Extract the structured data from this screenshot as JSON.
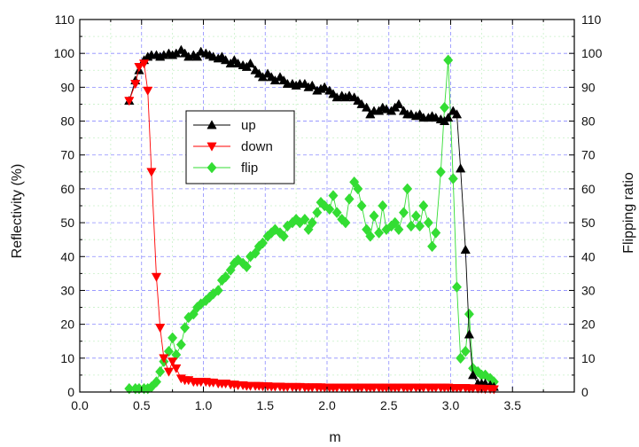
{
  "chart_data": {
    "type": "line",
    "xlabel": "m",
    "ylabel": "Reflectivity (%)",
    "y2label": "Flipping ratio",
    "xlim": [
      0.0,
      4.0
    ],
    "ylim": [
      0,
      110
    ],
    "y2lim": [
      0,
      110
    ],
    "xticks": [
      "0.0",
      "0.5",
      "1.0",
      "1.5",
      "2.0",
      "2.5",
      "3.0",
      "3.5"
    ],
    "yticks": [
      "0",
      "10",
      "20",
      "30",
      "40",
      "50",
      "60",
      "70",
      "80",
      "90",
      "100",
      "110"
    ],
    "y2ticks": [
      "0",
      "10",
      "20",
      "30",
      "40",
      "50",
      "60",
      "70",
      "80",
      "90",
      "100",
      "110"
    ],
    "grid": true,
    "legend_position": "upper-left-center",
    "series": [
      {
        "name": "up",
        "axis": "left",
        "color": "#000000",
        "marker": "triangle-up",
        "x": [
          0.4,
          0.45,
          0.48,
          0.52,
          0.55,
          0.58,
          0.62,
          0.65,
          0.68,
          0.72,
          0.75,
          0.78,
          0.82,
          0.85,
          0.88,
          0.92,
          0.95,
          0.98,
          1.02,
          1.05,
          1.08,
          1.12,
          1.15,
          1.18,
          1.22,
          1.25,
          1.28,
          1.32,
          1.35,
          1.38,
          1.42,
          1.45,
          1.48,
          1.52,
          1.55,
          1.58,
          1.62,
          1.65,
          1.68,
          1.72,
          1.75,
          1.78,
          1.82,
          1.85,
          1.88,
          1.92,
          1.95,
          1.98,
          2.02,
          2.05,
          2.08,
          2.12,
          2.15,
          2.18,
          2.22,
          2.25,
          2.28,
          2.32,
          2.35,
          2.38,
          2.42,
          2.45,
          2.48,
          2.52,
          2.55,
          2.58,
          2.62,
          2.65,
          2.68,
          2.72,
          2.75,
          2.78,
          2.82,
          2.85,
          2.88,
          2.92,
          2.95,
          2.98,
          3.02,
          3.05,
          3.08,
          3.12,
          3.15,
          3.18,
          3.22,
          3.25,
          3.28,
          3.32,
          3.35
        ],
        "y": [
          86,
          92,
          95,
          98,
          99,
          99.5,
          99.5,
          99,
          99.5,
          100,
          99.5,
          100,
          101,
          100,
          99,
          99.5,
          99,
          100.5,
          100,
          99.5,
          99,
          98.5,
          99,
          98,
          97,
          98,
          97,
          96.5,
          96,
          97,
          95,
          94,
          93,
          94,
          93,
          92,
          93,
          92,
          91,
          91,
          90.5,
          91,
          91,
          90,
          90.5,
          89,
          89.5,
          90,
          89,
          88,
          87,
          87.5,
          87,
          87.5,
          87,
          86,
          85,
          84,
          82,
          83,
          83,
          84,
          83.5,
          83,
          84,
          85,
          83,
          82,
          82,
          81.5,
          82,
          81,
          81,
          81.5,
          81,
          80.5,
          80,
          81,
          83,
          82,
          66,
          42,
          17,
          5,
          2.5,
          2.5,
          2.5,
          2,
          1.5
        ]
      },
      {
        "name": "down",
        "axis": "left",
        "color": "#ff0000",
        "marker": "triangle-down",
        "x": [
          0.4,
          0.45,
          0.48,
          0.52,
          0.55,
          0.58,
          0.62,
          0.65,
          0.68,
          0.72,
          0.75,
          0.78,
          0.82,
          0.85,
          0.88,
          0.92,
          0.95,
          0.98,
          1.02,
          1.05,
          1.08,
          1.12,
          1.15,
          1.18,
          1.22,
          1.25,
          1.28,
          1.32,
          1.35,
          1.38,
          1.42,
          1.45,
          1.48,
          1.52,
          1.55,
          1.58,
          1.62,
          1.65,
          1.68,
          1.72,
          1.75,
          1.78,
          1.82,
          1.85,
          1.88,
          1.92,
          1.95,
          1.98,
          2.02,
          2.05,
          2.08,
          2.12,
          2.15,
          2.18,
          2.22,
          2.25,
          2.28,
          2.32,
          2.35,
          2.38,
          2.42,
          2.45,
          2.48,
          2.52,
          2.55,
          2.58,
          2.62,
          2.65,
          2.68,
          2.72,
          2.75,
          2.78,
          2.82,
          2.85,
          2.88,
          2.92,
          2.95,
          2.98,
          3.02,
          3.05,
          3.08,
          3.12,
          3.15,
          3.18,
          3.22,
          3.25,
          3.28,
          3.32,
          3.35
        ],
        "y": [
          86,
          91,
          96,
          97,
          89,
          65,
          34,
          19,
          10,
          6,
          9,
          7,
          4,
          3.5,
          3.5,
          3,
          3,
          3,
          3,
          2.8,
          2.8,
          2.5,
          2.5,
          2.5,
          2.2,
          2.2,
          2,
          2,
          1.8,
          1.8,
          1.8,
          1.8,
          1.7,
          1.7,
          1.6,
          1.6,
          1.6,
          1.5,
          1.5,
          1.5,
          1.5,
          1.5,
          1.4,
          1.4,
          1.4,
          1.4,
          1.4,
          1.3,
          1.3,
          1.3,
          1.3,
          1.3,
          1.3,
          1.3,
          1.3,
          1.3,
          1.3,
          1.3,
          1.3,
          1.3,
          1.3,
          1.3,
          1.3,
          1.3,
          1.3,
          1.3,
          1.3,
          1.3,
          1.3,
          1.3,
          1.3,
          1.3,
          1.3,
          1.3,
          1.3,
          1.3,
          1.3,
          1.3,
          1.2,
          1.2,
          1.2,
          1.2,
          1.1,
          1.1,
          1.0,
          1.0,
          0.9,
          0.9,
          0.8
        ]
      },
      {
        "name": "flip",
        "axis": "right",
        "color": "#33dd33",
        "marker": "diamond",
        "x": [
          0.4,
          0.45,
          0.48,
          0.52,
          0.55,
          0.58,
          0.62,
          0.65,
          0.68,
          0.72,
          0.75,
          0.78,
          0.82,
          0.85,
          0.88,
          0.92,
          0.95,
          0.98,
          1.02,
          1.05,
          1.08,
          1.12,
          1.15,
          1.18,
          1.22,
          1.25,
          1.28,
          1.32,
          1.35,
          1.38,
          1.42,
          1.45,
          1.48,
          1.52,
          1.55,
          1.58,
          1.62,
          1.65,
          1.68,
          1.72,
          1.75,
          1.78,
          1.82,
          1.85,
          1.88,
          1.92,
          1.95,
          1.98,
          2.02,
          2.05,
          2.08,
          2.12,
          2.15,
          2.18,
          2.22,
          2.25,
          2.28,
          2.32,
          2.35,
          2.38,
          2.42,
          2.45,
          2.48,
          2.52,
          2.55,
          2.58,
          2.62,
          2.65,
          2.68,
          2.72,
          2.75,
          2.78,
          2.82,
          2.85,
          2.88,
          2.92,
          2.95,
          2.98,
          3.02,
          3.05,
          3.08,
          3.12,
          3.15,
          3.18,
          3.22,
          3.25,
          3.28,
          3.32,
          3.35
        ],
        "y": [
          1,
          1,
          1,
          1,
          1,
          1.5,
          3,
          6,
          9,
          12,
          16,
          11,
          14,
          19,
          22,
          23,
          25,
          26,
          27,
          28,
          29,
          30,
          33,
          34,
          36,
          38,
          39,
          38,
          37,
          40,
          41,
          43,
          44,
          46,
          47,
          48,
          47,
          46,
          49,
          50,
          51,
          50,
          51,
          48,
          50,
          53,
          56,
          55,
          54,
          58,
          53,
          51,
          50,
          57,
          62,
          60,
          55,
          48,
          46,
          52,
          47,
          55,
          48,
          49,
          50,
          48,
          53,
          60,
          49,
          52,
          49,
          55,
          50,
          43,
          47,
          65,
          84,
          98,
          63,
          31,
          10,
          12,
          23,
          7,
          6,
          5,
          5,
          4,
          3
        ]
      }
    ]
  }
}
